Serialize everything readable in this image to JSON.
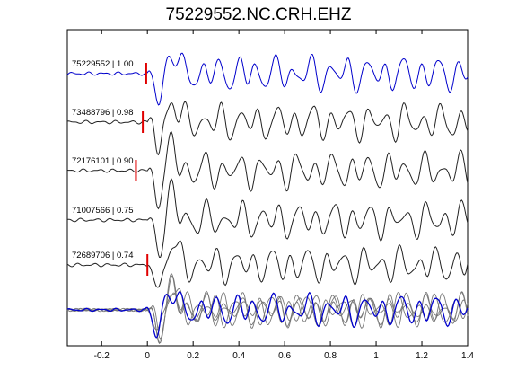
{
  "chart_data": {
    "type": "line",
    "title": "75229552.NC.CRH.EHZ",
    "xlabel": "",
    "ylabel": "",
    "xlim": [
      -0.35,
      1.4
    ],
    "xticks": [
      -0.2,
      0,
      0.2,
      0.4,
      0.6,
      0.8,
      1,
      1.2,
      1.4
    ],
    "xtick_labels": [
      "-0.2",
      "0",
      "0.2",
      "0.4",
      "0.6",
      "0.8",
      "1",
      "1.2",
      "1.4"
    ],
    "grid": false,
    "colors": {
      "master": "#0000cc",
      "trace": "#222222",
      "stack": "#777777",
      "pick": "#e00000",
      "axis": "#000000"
    },
    "traces": [
      {
        "label": "75229552 | 1.00",
        "event_id": "75229552",
        "correlation": 1.0,
        "pick_time": -0.005,
        "master": true,
        "seed": 1
      },
      {
        "label": "73488796 | 0.98",
        "event_id": "73488796",
        "correlation": 0.98,
        "pick_time": -0.02,
        "master": false,
        "seed": 2
      },
      {
        "label": "72176101 | 0.90",
        "event_id": "72176101",
        "correlation": 0.9,
        "pick_time": -0.05,
        "master": false,
        "seed": 3
      },
      {
        "label": "71007566 | 0.75",
        "event_id": "71007566",
        "correlation": 0.75,
        "pick_time": null,
        "master": false,
        "seed": 4
      },
      {
        "label": "72689706 | 0.74",
        "event_id": "72689706",
        "correlation": 0.74,
        "pick_time": 0.0,
        "master": false,
        "seed": 5
      }
    ],
    "overlay": {
      "description_free": true,
      "seeds": [
        2,
        3,
        4,
        5
      ],
      "master_seed": 1
    }
  }
}
